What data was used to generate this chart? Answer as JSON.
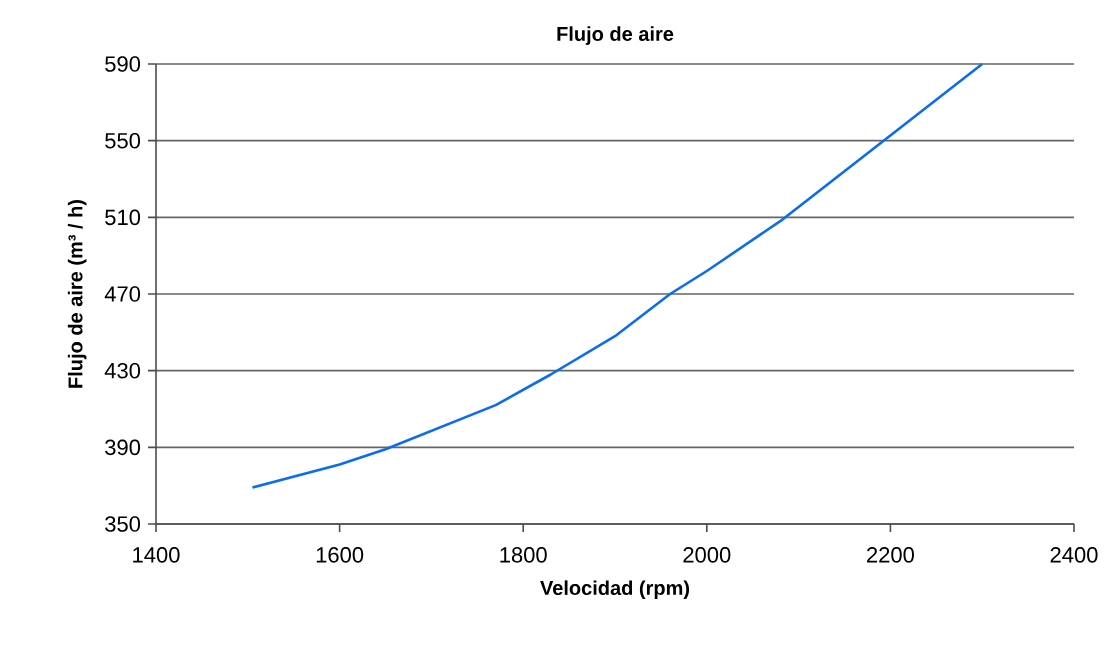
{
  "chart_data": {
    "type": "line",
    "title": "Flujo de aire",
    "xlabel": "Velocidad (rpm)",
    "ylabel": "Flujo de aire (m³ / h)",
    "x": [
      1505,
      1600,
      1650,
      1770,
      1830,
      1900,
      1960,
      2000,
      2080,
      2190,
      2300
    ],
    "series": [
      {
        "color": "#0a6cf0",
        "values": [
          369,
          381,
          389,
          412,
          428,
          448,
          470,
          482,
          508,
          549,
          590
        ]
      }
    ],
    "xlim": [
      1400,
      2400
    ],
    "ylim": [
      350,
      590
    ],
    "xticks": [
      1400,
      1600,
      1800,
      2000,
      2200,
      2400
    ],
    "yticks": [
      350,
      390,
      430,
      470,
      510,
      550,
      590
    ],
    "grid": "y",
    "marker": "none",
    "line_style": "solid"
  }
}
